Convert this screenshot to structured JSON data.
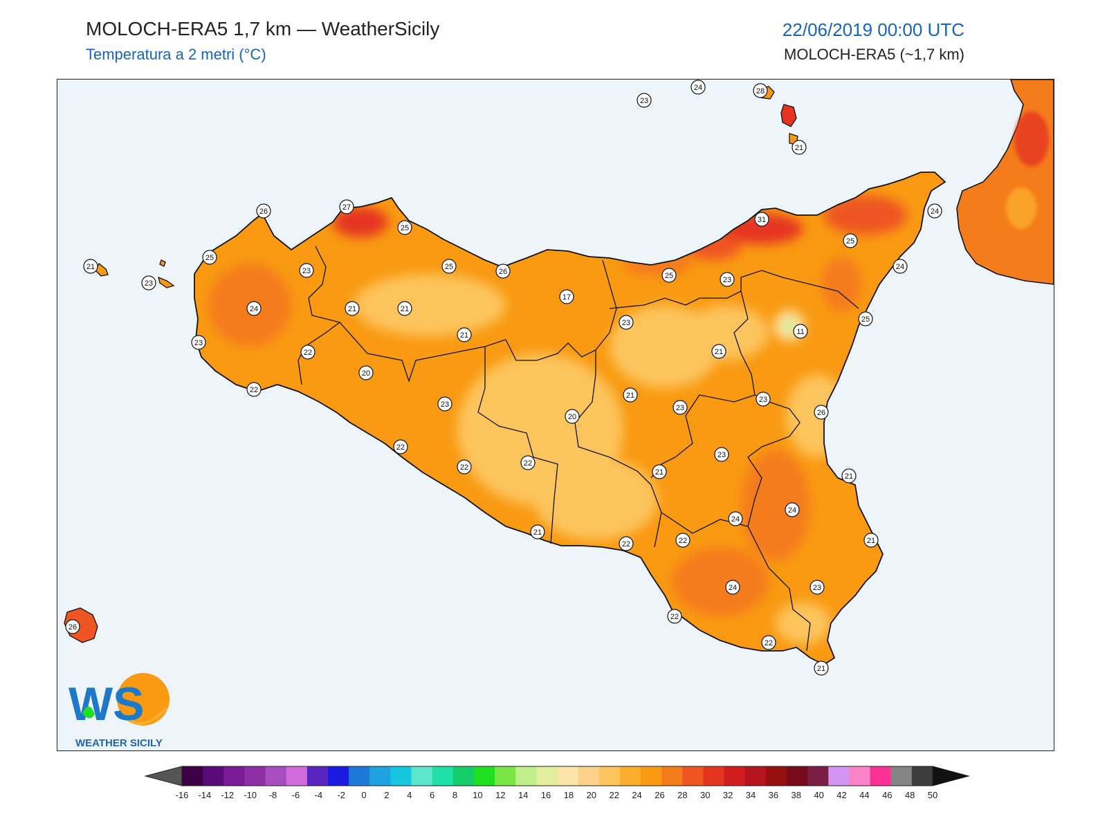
{
  "header": {
    "title": "MOLOCH-ERA5 1,7 km — WeatherSicily",
    "subtitle": "Temperatura a 2 metri (°C)",
    "datetime": "22/06/2019 00:00 UTC",
    "model": "MOLOCH-ERA5 (~1,7 km)"
  },
  "logo": {
    "letters": "WS",
    "name": "WEATHER SICILY"
  },
  "colors": {
    "sea": "#eef5fa",
    "t18": "#fdd28a",
    "t20": "#fcc45c",
    "t22": "#fbad2e",
    "t24": "#f99a12",
    "t26": "#f57c1a",
    "t28": "#ee5520",
    "t30": "#e53520",
    "t32": "#d01e1e",
    "coast": "#111111"
  },
  "colorbar": {
    "ticks": [
      "-16",
      "-14",
      "-12",
      "-10",
      "-8",
      "-6",
      "-4",
      "-2",
      "0",
      "2",
      "4",
      "6",
      "8",
      "10",
      "12",
      "14",
      "16",
      "18",
      "20",
      "22",
      "24",
      "26",
      "28",
      "30",
      "32",
      "34",
      "36",
      "38",
      "40",
      "42",
      "44",
      "46",
      "48",
      "50"
    ],
    "colors": [
      "#3d0045",
      "#5a0a7a",
      "#7a1a96",
      "#8e2fa8",
      "#a64ec0",
      "#d26bdc",
      "#5a24c0",
      "#1a1ae0",
      "#1e78d8",
      "#1ea2e0",
      "#14c6e0",
      "#5ee6cc",
      "#1ee0a8",
      "#14cc6a",
      "#1ee01e",
      "#7ae646",
      "#bfee8a",
      "#e2ee9e",
      "#fde4a8",
      "#fdd28a",
      "#fcc45c",
      "#fbad2e",
      "#f99a12",
      "#f57c1a",
      "#ee5520",
      "#e53520",
      "#d01e1e",
      "#b4141e",
      "#961010",
      "#780a1e",
      "#7a1e46",
      "#d296f2",
      "#fa82c8",
      "#fa3296",
      "#848484",
      "#3c3c3c"
    ]
  },
  "stations": [
    {
      "v": "23"
    },
    {
      "v": "24"
    },
    {
      "v": "28"
    },
    {
      "v": "21"
    },
    {
      "v": "21"
    },
    {
      "v": "23"
    },
    {
      "v": "26"
    },
    {
      "v": "27"
    },
    {
      "v": "25"
    },
    {
      "v": "25"
    },
    {
      "v": "23"
    },
    {
      "v": "24"
    },
    {
      "v": "21"
    },
    {
      "v": "21"
    },
    {
      "v": "23"
    },
    {
      "v": "22"
    },
    {
      "v": "20"
    },
    {
      "v": "22"
    },
    {
      "v": "21"
    },
    {
      "v": "25"
    },
    {
      "v": "26"
    },
    {
      "v": "17"
    },
    {
      "v": "23"
    },
    {
      "v": "31"
    },
    {
      "v": "25"
    },
    {
      "v": "23"
    },
    {
      "v": "24"
    },
    {
      "v": "25"
    },
    {
      "v": "24"
    },
    {
      "v": "25"
    },
    {
      "v": "11"
    },
    {
      "v": "21"
    },
    {
      "v": "23"
    },
    {
      "v": "21"
    },
    {
      "v": "23"
    },
    {
      "v": "20"
    },
    {
      "v": "23"
    },
    {
      "v": "26"
    },
    {
      "v": "23"
    },
    {
      "v": "22"
    },
    {
      "v": "22"
    },
    {
      "v": "22"
    },
    {
      "v": "21"
    },
    {
      "v": "21"
    },
    {
      "v": "24"
    },
    {
      "v": "24"
    },
    {
      "v": "21"
    },
    {
      "v": "22"
    },
    {
      "v": "21"
    },
    {
      "v": "22"
    },
    {
      "v": "24"
    },
    {
      "v": "23"
    },
    {
      "v": "22"
    },
    {
      "v": "22"
    },
    {
      "v": "21"
    },
    {
      "v": "26"
    }
  ]
}
